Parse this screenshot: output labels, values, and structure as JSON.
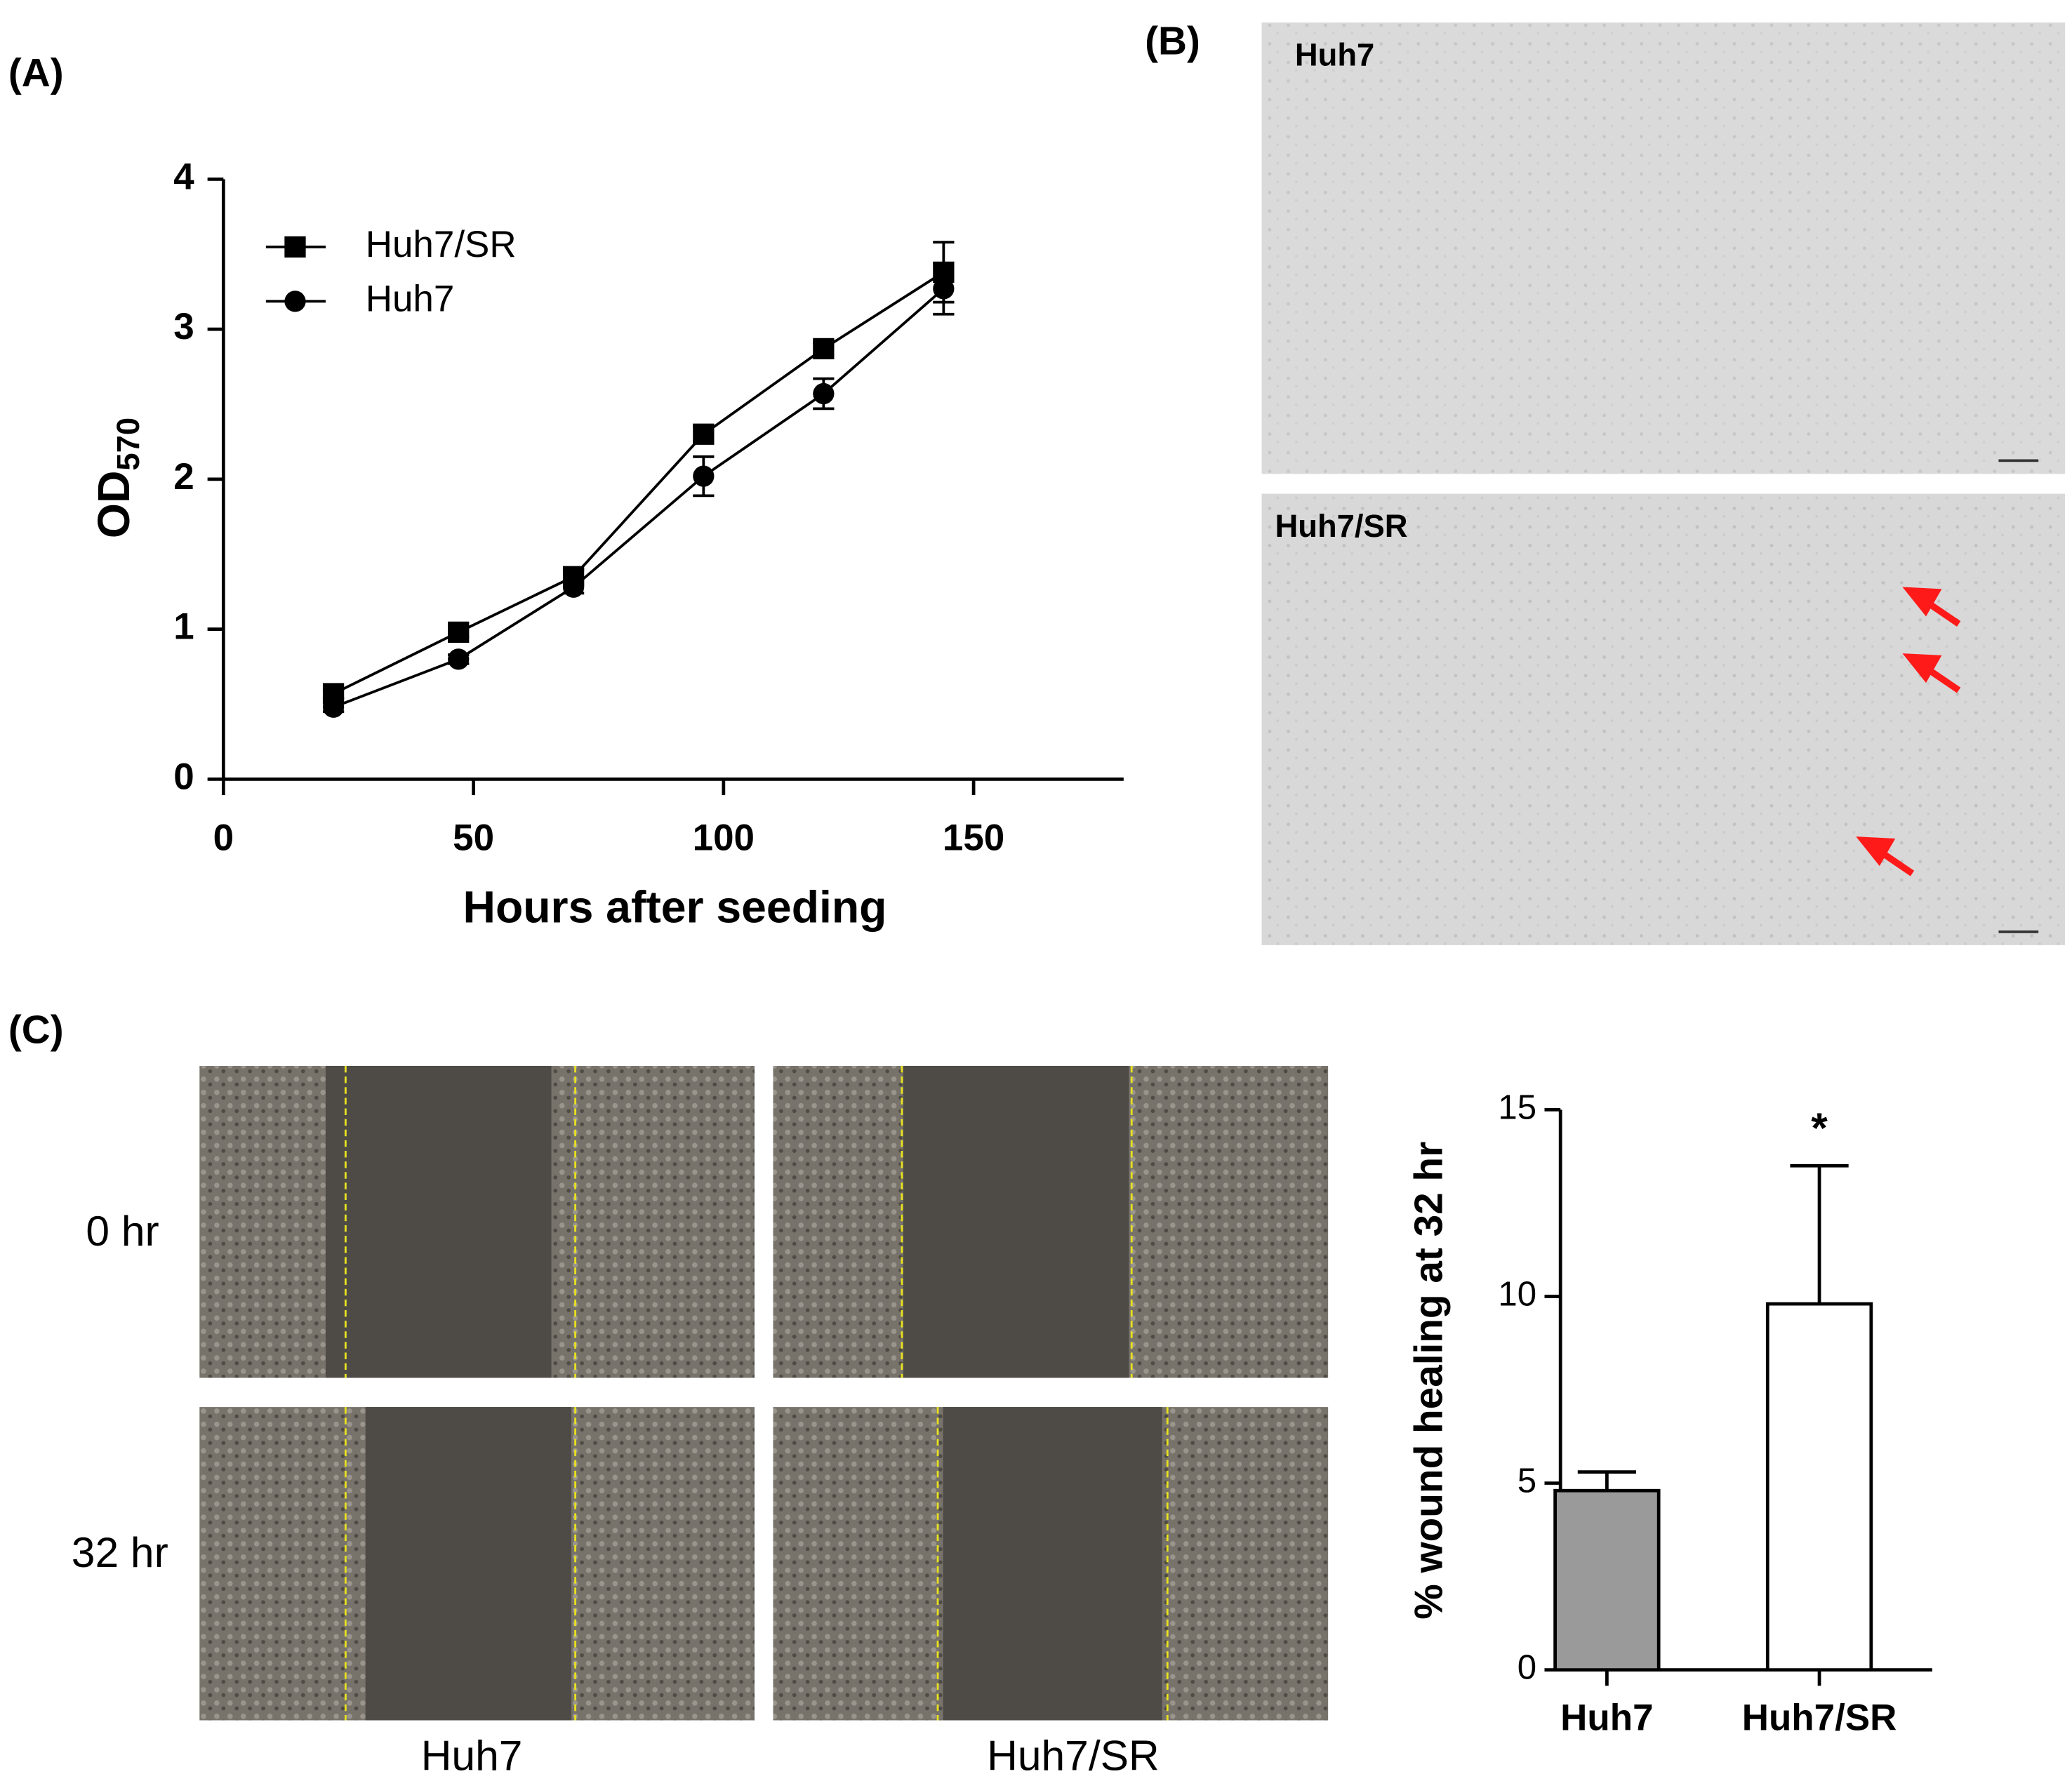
{
  "chart_data": [
    {
      "type": "line",
      "x_label": "Hours after seeding",
      "y_label": "OD",
      "y_label_sub": "570",
      "x": [
        22,
        47,
        70,
        96,
        120,
        144
      ],
      "series": [
        {
          "name": "Huh7/SR",
          "color": "#000000",
          "marker": "square",
          "values": [
            0.57,
            0.98,
            1.35,
            2.3,
            2.87,
            3.38
          ],
          "errors": [
            0.03,
            0.03,
            0.05,
            0.05,
            0.04,
            0.2
          ]
        },
        {
          "name": "Huh7",
          "color": "#000000",
          "marker": "circle",
          "values": [
            0.48,
            0.8,
            1.28,
            2.02,
            2.57,
            3.27
          ],
          "errors": [
            0.03,
            0.03,
            0.04,
            0.13,
            0.1,
            0.17
          ]
        }
      ],
      "xlim": [
        0,
        180
      ],
      "xticks": [
        0,
        50,
        100,
        150
      ],
      "ylim": [
        0,
        4
      ],
      "yticks": [
        0,
        1,
        2,
        3,
        4
      ],
      "legend": "upper left"
    },
    {
      "type": "bar",
      "y_label": "% wound healing at 32 hr",
      "categories": [
        "Huh7",
        "Huh7/SR"
      ],
      "values": [
        4.8,
        9.8
      ],
      "errors": [
        0.5,
        3.7
      ],
      "colors": [
        "#9a9a9a",
        "#ffffff"
      ],
      "annotations": [
        "",
        "*"
      ],
      "ylim": [
        0,
        15
      ],
      "yticks": [
        0,
        5,
        10,
        15
      ]
    }
  ],
  "panels": {
    "a": "(A)",
    "b": "(B)",
    "c": "(C)",
    "b_images": [
      "Huh7",
      "Huh7/SR"
    ],
    "c_rows": [
      "0 hr",
      "32 hr"
    ],
    "c_cols": [
      "Huh7",
      "Huh7/SR"
    ]
  }
}
